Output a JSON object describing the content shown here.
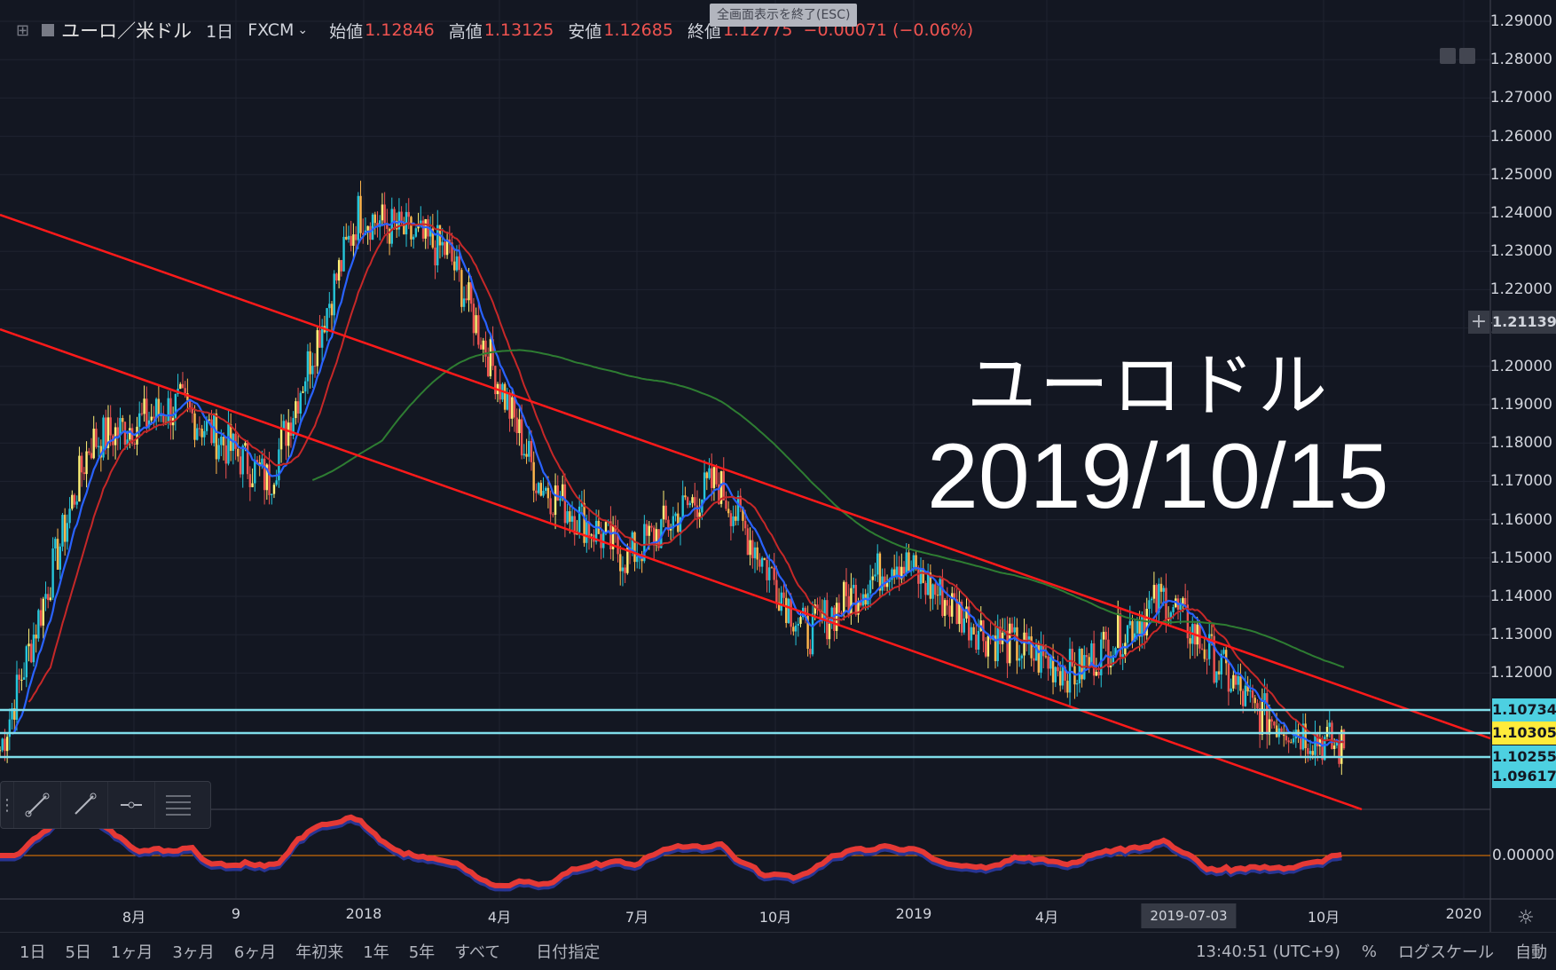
{
  "header": {
    "symbol": "ユーロ／米ドル",
    "interval": "1日",
    "source": "FXCM",
    "open_label": "始値",
    "open_value": "1.12846",
    "high_label": "高値",
    "high_value": "1.13125",
    "low_label": "安値",
    "low_value": "1.12685",
    "close_label": "終値",
    "close_value": "1.12775",
    "change": "−0.00071 (−0.06%)"
  },
  "esc_banner": "全画面表示を終了(ESC)",
  "overlay": {
    "title": "ユーロドル",
    "date": "2019/10/15"
  },
  "price_axis": {
    "ticks": [
      "1.29000",
      "1.28000",
      "1.27000",
      "1.26000",
      "1.25000",
      "1.24000",
      "1.23000",
      "1.22000",
      "1.21000",
      "1.20000",
      "1.19000",
      "1.18000",
      "1.17000",
      "1.16000",
      "1.15000",
      "1.14000",
      "1.13000",
      "1.12000"
    ],
    "crosshair_price": "1.21139",
    "levels": [
      {
        "value": "1.10734",
        "bg": "#4dd0e1"
      },
      {
        "value": "1.10305",
        "bg": "#ffeb3b"
      },
      {
        "value": "1.10255",
        "bg": "#4dd0e1"
      },
      {
        "value": "1.09617",
        "bg": "#4dd0e1"
      }
    ],
    "oscillator_tick": "0.00000"
  },
  "time_axis": {
    "labels": [
      {
        "text": "8月"
      },
      {
        "text": "9"
      },
      {
        "text": "2018"
      },
      {
        "text": "4月"
      },
      {
        "text": "7月"
      },
      {
        "text": "10月"
      },
      {
        "text": "2019"
      },
      {
        "text": "4月"
      },
      {
        "text": "10月"
      },
      {
        "text": "2020"
      }
    ],
    "crosshair_date": "2019-07-03"
  },
  "bottom_bar": {
    "ranges": [
      "1日",
      "5日",
      "1ヶ月",
      "3ヶ月",
      "6ヶ月",
      "年初来",
      "1年",
      "5年",
      "すべて"
    ],
    "date_picker": "日付指定",
    "clock": "13:40:51 (UTC+9)",
    "percent": "%",
    "log_scale": "ログスケール",
    "auto": "自動"
  },
  "colors": {
    "background": "#131722",
    "trendline": "#ff1a1a",
    "ma_fast": "#2962ff",
    "ma_mid": "#c62828",
    "ma_slow": "#2e7d32",
    "level_line": "#80deea"
  },
  "chart_data": {
    "type": "line",
    "series": [
      {
        "name": "",
        "x": [
          "2017-07",
          "2017-08",
          "2017-09",
          "2017-12",
          "2018-02",
          "2018-04",
          "2018-06",
          "2018-08",
          "2018-09",
          "2018-11",
          "2019-01",
          "2019-03",
          "2019-05",
          "2019-07",
          "2019-08",
          "2019-10"
        ],
        "values": [
          1.1,
          1.18,
          1.19,
          1.17,
          1.24,
          1.23,
          1.17,
          1.15,
          1.17,
          1.13,
          1.15,
          1.13,
          1.12,
          1.14,
          1.11,
          1.1
        ]
      }
    ],
    "ylim": [
      1.09,
      1.29
    ],
    "grid": true
  }
}
